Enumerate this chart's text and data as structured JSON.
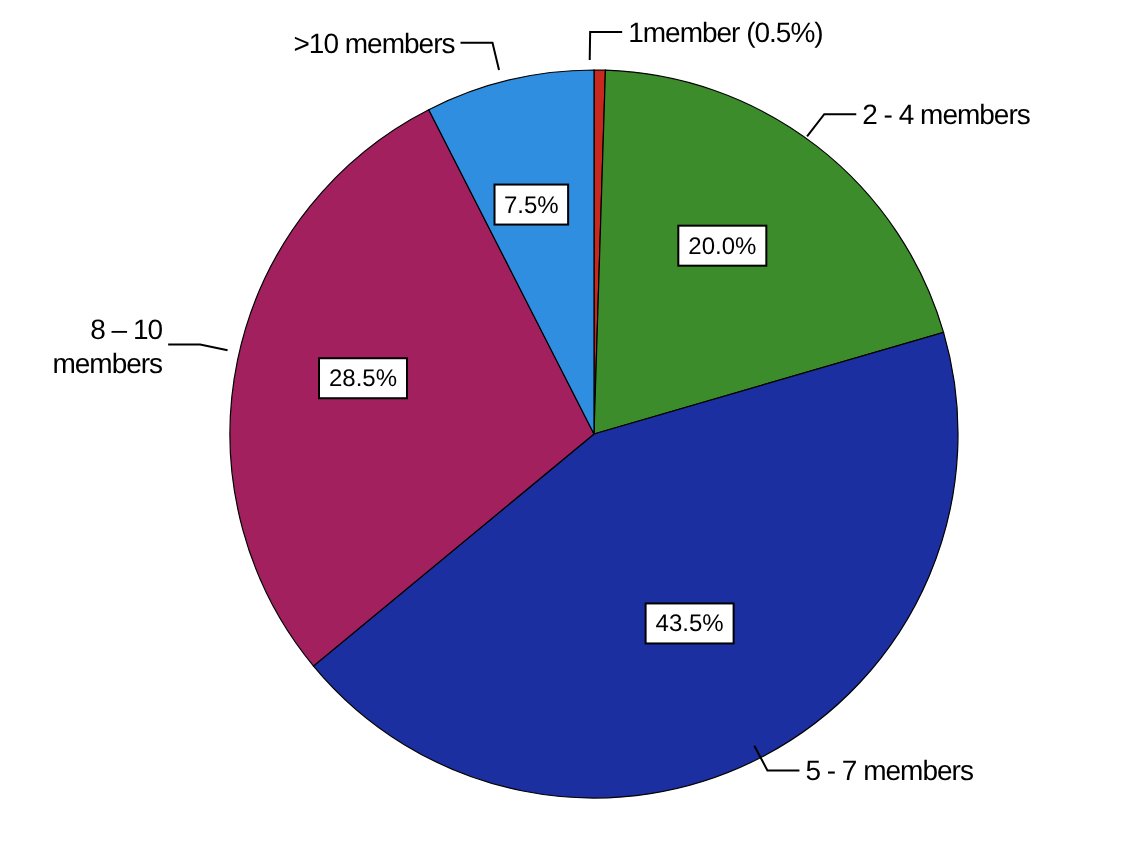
{
  "chart_data": {
    "type": "pie",
    "categories": [
      "1member (0.5%)",
      "2 - 4 members",
      "5 - 7 members",
      "8 – 10 members",
      ">10 members"
    ],
    "values": [
      0.5,
      20.0,
      43.5,
      28.5,
      7.5
    ],
    "colors": [
      "#c8281e",
      "#3c8c2c",
      "#1c2fa0",
      "#a3205e",
      "#2f8ee0"
    ],
    "value_labels": [
      null,
      "20.0%",
      "43.5%",
      "28.5%",
      "7.5%"
    ],
    "legend": false
  }
}
